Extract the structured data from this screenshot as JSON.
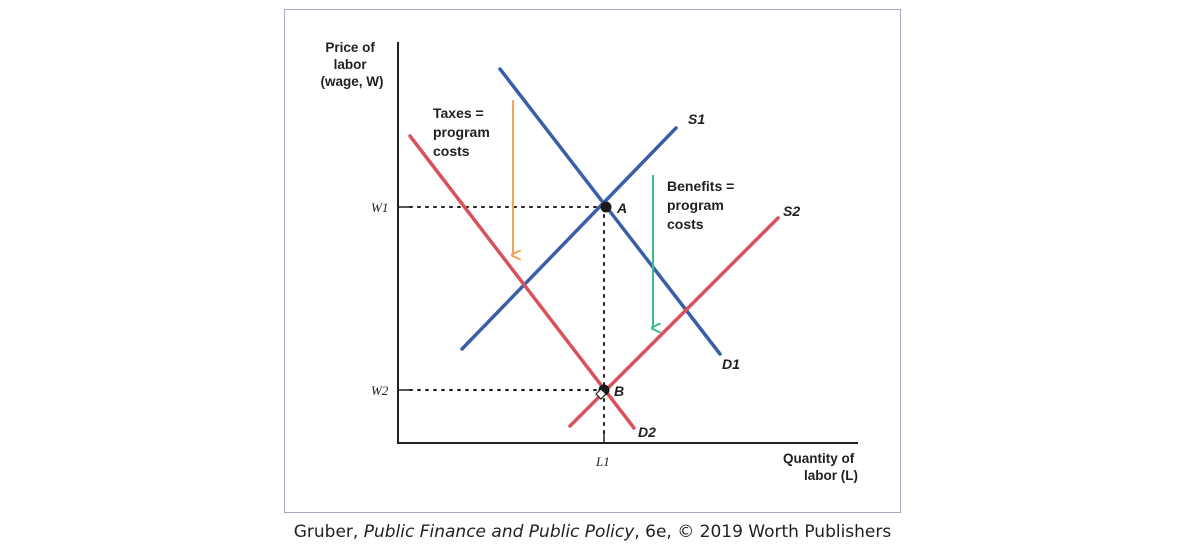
{
  "diagram": {
    "y_axis_label": [
      "Price of",
      "labor",
      "(wage, W)"
    ],
    "x_axis_label": [
      "Quantity of",
      "labor (L)"
    ],
    "ticks": {
      "w1": "W1",
      "w2": "W2",
      "l1": "L1"
    },
    "curves": {
      "s1": "S1",
      "s2": "S2",
      "d1": "D1",
      "d2": "D2"
    },
    "points": {
      "a": "A",
      "b": "B"
    },
    "annotations": {
      "taxes": [
        "Taxes =",
        "program",
        "costs"
      ],
      "benefits": [
        "Benefits =",
        "program",
        "costs"
      ]
    },
    "colors": {
      "blue_curves": "#3a5fa8",
      "red_curves": "#d9515c",
      "tax_arrow": "#f0a45a",
      "benefit_arrow": "#3ebd8c",
      "frame": "#a9a5c9",
      "axes": "#231f20"
    }
  },
  "caption": {
    "author": "Gruber, ",
    "title": "Public Finance and Public Policy",
    "rest": ", 6e, © 2019 Worth Publishers"
  }
}
